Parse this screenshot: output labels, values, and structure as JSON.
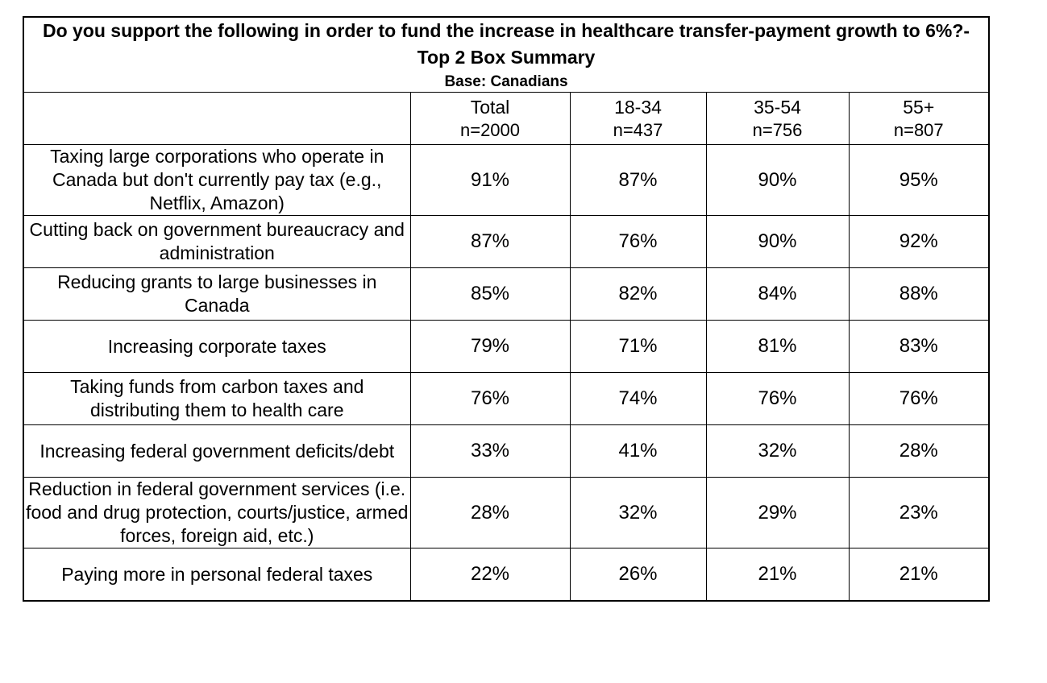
{
  "table": {
    "title": "Do you support the following in order to fund the increase in healthcare transfer-payment growth to 6%?- Top 2 Box Summary",
    "base_label": "Base: Canadians",
    "border_color": "#000000",
    "background_color": "#ffffff",
    "text_color": "#000000",
    "columns": [
      {
        "label": "Total",
        "n": "n=2000"
      },
      {
        "label": "18-34",
        "n": "n=437"
      },
      {
        "label": "35-54",
        "n": "n=756"
      },
      {
        "label": "55+",
        "n": "n=807"
      }
    ],
    "rows": [
      {
        "label": "Taxing large corporations who operate in Canada but don't currently pay tax (e.g., Netflix, Amazon)",
        "values": [
          "91%",
          "87%",
          "90%",
          "95%"
        ]
      },
      {
        "label": "Cutting back on government bureaucracy and administration",
        "values": [
          "87%",
          "76%",
          "90%",
          "92%"
        ]
      },
      {
        "label": "Reducing grants to large businesses in Canada",
        "values": [
          "85%",
          "82%",
          "84%",
          "88%"
        ]
      },
      {
        "label": "Increasing corporate taxes",
        "values": [
          "79%",
          "71%",
          "81%",
          "83%"
        ]
      },
      {
        "label": "Taking funds from carbon taxes and distributing them to health care",
        "values": [
          "76%",
          "74%",
          "76%",
          "76%"
        ]
      },
      {
        "label": "Increasing federal government deficits/debt",
        "values": [
          "33%",
          "41%",
          "32%",
          "28%"
        ]
      },
      {
        "label": "Reduction in federal government services (i.e. food and drug protection, courts/justice, armed forces, foreign aid, etc.)",
        "values": [
          "28%",
          "32%",
          "29%",
          "23%"
        ]
      },
      {
        "label": "Paying more in personal federal taxes",
        "values": [
          "22%",
          "26%",
          "21%",
          "21%"
        ]
      }
    ]
  }
}
